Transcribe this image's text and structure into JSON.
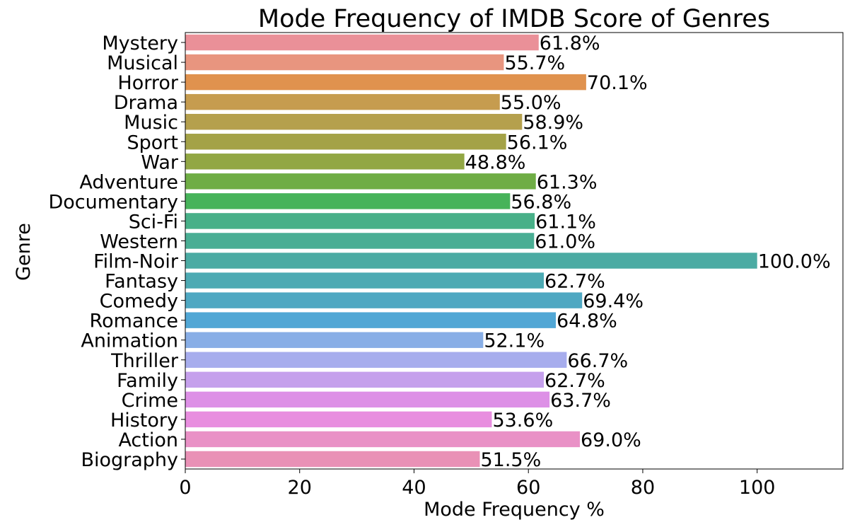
{
  "chart_data": {
    "type": "bar",
    "orientation": "horizontal",
    "title": "Mode Frequency of IMDB Score of Genres",
    "xlabel": "Mode Frequency %",
    "ylabel": "Genre",
    "xlim": [
      0,
      115
    ],
    "xticks": [
      0,
      20,
      40,
      60,
      80,
      100
    ],
    "grid": false,
    "categories": [
      "Mystery",
      "Musical",
      "Horror",
      "Drama",
      "Music",
      "Sport",
      "War",
      "Adventure",
      "Documentary",
      "Sci-Fi",
      "Western",
      "Film-Noir",
      "Fantasy",
      "Comedy",
      "Romance",
      "Animation",
      "Thriller",
      "Family",
      "Crime",
      "History",
      "Action",
      "Biography"
    ],
    "values": [
      61.8,
      55.7,
      70.1,
      55.0,
      58.9,
      56.1,
      48.8,
      61.3,
      56.8,
      61.1,
      61.0,
      100.0,
      62.7,
      69.4,
      64.8,
      52.1,
      66.7,
      62.7,
      63.7,
      53.6,
      69.0,
      51.5
    ],
    "data_labels": [
      "61.8%",
      "55.7%",
      "70.1%",
      "55.0%",
      "58.9%",
      "56.1%",
      "48.8%",
      "61.3%",
      "56.8%",
      "61.1%",
      "61.0%",
      "100.0%",
      "62.7%",
      "69.4%",
      "64.8%",
      "52.1%",
      "66.7%",
      "62.7%",
      "63.7%",
      "53.6%",
      "69.0%",
      "51.5%"
    ],
    "colors": [
      "#ea9098",
      "#e8957f",
      "#e0924e",
      "#c69c4f",
      "#b5a04d",
      "#a4a247",
      "#92a744",
      "#6fad45",
      "#47b35a",
      "#48b088",
      "#4aae94",
      "#4baba3",
      "#4daab3",
      "#4fa8c2",
      "#51a7d5",
      "#88aee6",
      "#a7aded",
      "#c5a0ec",
      "#dd90e6",
      "#e88edf",
      "#e991c6",
      "#e991b6"
    ]
  }
}
